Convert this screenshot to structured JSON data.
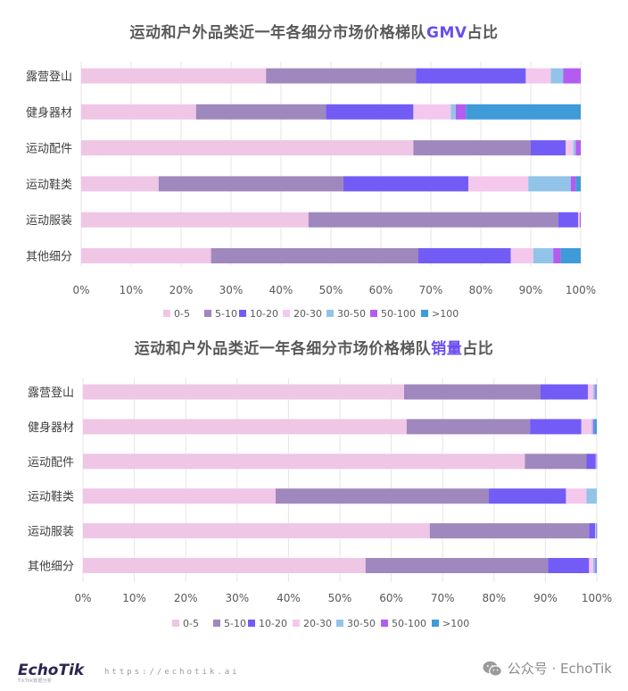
{
  "chart_data": [
    {
      "type": "bar",
      "orientation": "horizontal",
      "stacked": "percent",
      "title_prefix": "运动和户外品类近一年各细分市场价格梯队",
      "title_highlight": "GMV",
      "title_suffix": "占比",
      "categories": [
        "露营登山",
        "健身器材",
        "运动配件",
        "运动鞋类",
        "运动服装",
        "其他细分"
      ],
      "x_ticks": [
        "0%",
        "10%",
        "20%",
        "30%",
        "40%",
        "50%",
        "60%",
        "70%",
        "80%",
        "90%",
        "100%"
      ],
      "xlim": [
        0,
        100
      ],
      "legend_position": "bottom",
      "series": [
        {
          "name": "0-5",
          "color": "#efc6e6",
          "values": [
            37,
            23,
            66.5,
            15.5,
            45.5,
            26
          ]
        },
        {
          "name": "5-10",
          "color": "#9f88bd",
          "values": [
            30,
            26,
            23.5,
            37,
            50,
            41.5
          ]
        },
        {
          "name": "10-20",
          "color": "#735cf6",
          "values": [
            22,
            17.5,
            7,
            25,
            4,
            18.5
          ]
        },
        {
          "name": "20-30",
          "color": "#f4c8ec",
          "values": [
            5,
            7.5,
            1.5,
            12,
            0.3,
            4.5
          ]
        },
        {
          "name": "30-50",
          "color": "#92c4ea",
          "values": [
            2.5,
            1,
            0.5,
            8.5,
            0,
            4
          ]
        },
        {
          "name": "50-100",
          "color": "#b45cf0",
          "values": [
            3.5,
            2,
            1,
            1,
            0.2,
            1.5
          ]
        },
        {
          "name": ">100",
          "color": "#3f9ad8",
          "values": [
            0,
            23,
            0,
            1,
            0,
            4
          ]
        }
      ]
    },
    {
      "type": "bar",
      "orientation": "horizontal",
      "stacked": "percent",
      "title_prefix": "运动和户外品类近一年各细分市场价格梯队",
      "title_highlight": "销量",
      "title_suffix": "占比",
      "categories": [
        "露营登山",
        "健身器材",
        "运动配件",
        "运动鞋类",
        "运动服装",
        "其他细分"
      ],
      "x_ticks": [
        "0%",
        "10%",
        "20%",
        "30%",
        "40%",
        "50%",
        "60%",
        "70%",
        "80%",
        "90%",
        "100%"
      ],
      "xlim": [
        0,
        100
      ],
      "legend_position": "bottom",
      "series": [
        {
          "name": "0-5",
          "color": "#efc6e6",
          "values": [
            62.5,
            63,
            86,
            37.5,
            67.5,
            55
          ]
        },
        {
          "name": "5-10",
          "color": "#9f88bd",
          "values": [
            26.5,
            24,
            12,
            41.5,
            31,
            35.5
          ]
        },
        {
          "name": "10-20",
          "color": "#735cf6",
          "values": [
            9.3,
            10,
            1.8,
            15,
            1.2,
            8
          ]
        },
        {
          "name": "20-30",
          "color": "#f4c8ec",
          "values": [
            1,
            2,
            0.1,
            4,
            0.1,
            0.8
          ]
        },
        {
          "name": "30-50",
          "color": "#92c4ea",
          "values": [
            0.4,
            0.3,
            0.05,
            2,
            0.1,
            0.4
          ]
        },
        {
          "name": "50-100",
          "color": "#b45cf0",
          "values": [
            0.2,
            0.2,
            0.05,
            0,
            0.05,
            0.2
          ]
        },
        {
          "name": ">100",
          "color": "#3f9ad8",
          "values": [
            0.1,
            0.5,
            0,
            0,
            0.05,
            0.1
          ]
        }
      ]
    }
  ],
  "footer": {
    "logo": "EchoTik",
    "logo_sub": "TikTok数据分析",
    "url": "https://echotik.ai",
    "wechat": "公众号 · EchoTik",
    "wechat_icon": "wechat-icon"
  }
}
